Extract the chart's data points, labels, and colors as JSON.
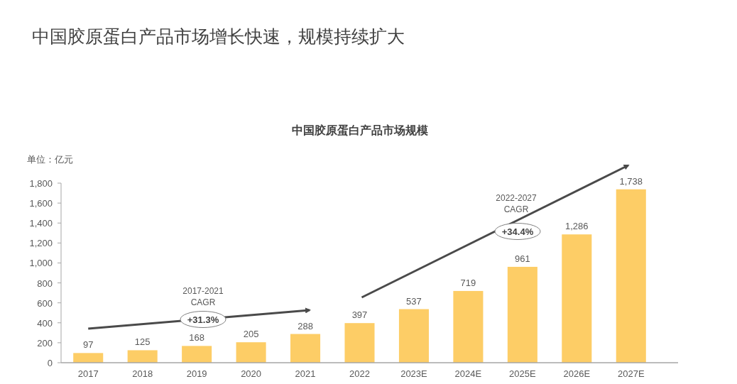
{
  "chart_data": {
    "type": "bar",
    "title": "中国胶原蛋白产品市场增长快速，规模持续扩大",
    "subtitle": "中国胶原蛋白产品市场规模",
    "ylabel": "单位：亿元",
    "categories": [
      "2017",
      "2018",
      "2019",
      "2020",
      "2021",
      "2022",
      "2023E",
      "2024E",
      "2025E",
      "2026E",
      "2027E"
    ],
    "values": [
      97,
      125,
      168,
      205,
      288,
      397,
      537,
      719,
      961,
      1286,
      1738
    ],
    "value_labels": [
      "97",
      "125",
      "168",
      "205",
      "288",
      "397",
      "537",
      "719",
      "961",
      "1,286",
      "1,738"
    ],
    "color": "#fdcd66",
    "ylim": [
      0,
      1800
    ],
    "yticks": [
      0,
      200,
      400,
      600,
      800,
      {
        "value": 1000,
        "label": "1,000"
      },
      {
        "value": 1200,
        "label": "1,200"
      },
      {
        "value": 1400,
        "label": "1,400"
      },
      {
        "value": 1600,
        "label": "1,600"
      },
      {
        "value": 1800,
        "label": "1,800"
      }
    ],
    "annotations": [
      "2017-2021",
      "CAGR",
      "+31.3%",
      "2022-2027",
      "CAGR",
      "+34.4%"
    ]
  }
}
